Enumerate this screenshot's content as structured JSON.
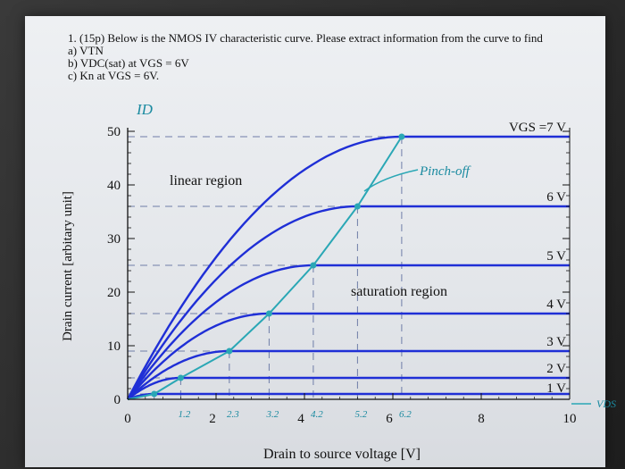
{
  "question": {
    "title": "1. (15p) Below is the NMOS IV characteristic curve. Please extract information from the curve to find",
    "part_a": "a) VTN",
    "part_b": "b) VDC(sat) at VGS = 6V",
    "part_c": "c) Kn at VGS = 6V."
  },
  "chart_data": {
    "type": "line",
    "xlabel": "Drain to source voltage [V]",
    "ylabel": "Drain current [arbitary unit]",
    "xlim": [
      0,
      10
    ],
    "ylim": [
      0,
      50
    ],
    "x_ticks": [
      0,
      2,
      4,
      6,
      8,
      10
    ],
    "y_ticks": [
      0,
      10,
      20,
      30,
      40,
      50
    ],
    "series": [
      {
        "name": "1 V",
        "vdsat": 0.6,
        "isat": 1.0
      },
      {
        "name": "2 V",
        "vdsat": 1.2,
        "isat": 4.0
      },
      {
        "name": "3 V",
        "vdsat": 2.3,
        "isat": 9.0
      },
      {
        "name": "4 V",
        "vdsat": 3.2,
        "isat": 16.0
      },
      {
        "name": "5 V",
        "vdsat": 4.2,
        "isat": 25.0
      },
      {
        "name": "6 V",
        "vdsat": 5.2,
        "isat": 36.0
      },
      {
        "name": "VGS =7 V",
        "vdsat": 6.2,
        "isat": 49.0
      }
    ],
    "region_labels": {
      "linear": "linear region",
      "saturation": "saturation region"
    },
    "handwritten": {
      "id_label": "ID",
      "pinch_off": "Pinch-off",
      "vds_label": "VDS",
      "x_marks": [
        "1.2",
        "2.3",
        "3.2",
        "4.2",
        "5.2",
        "6.2"
      ]
    },
    "colors": {
      "curve": "#1f2fd6",
      "pinch": "#2aa7b5",
      "grid": "#6f7da8",
      "axis": "#111111"
    }
  }
}
